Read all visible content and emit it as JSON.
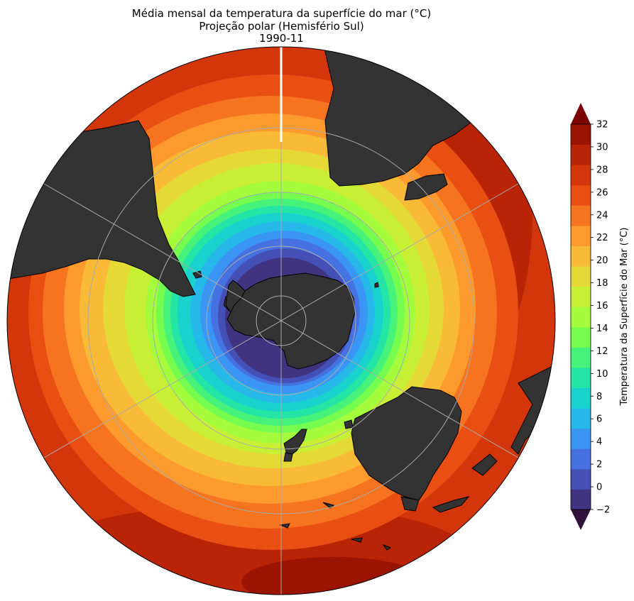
{
  "title": {
    "line1": "Média mensal da temperatura da superfície do mar (°C)",
    "line2": "Projeção polar (Hemisfério Sul)",
    "line3": "1990-11"
  },
  "map": {
    "projection": "South Polar Stereographic",
    "hemisphere": "Sul",
    "variable": "Temperatura da superfície do mar",
    "date": "1990-11",
    "land_color": "#333333",
    "gridline_color": "#aaaaaa"
  },
  "colorbar": {
    "label": "Temperatura da Superfície do Mar (°C)",
    "ticks": [
      "32",
      "30",
      "28",
      "26",
      "24",
      "22",
      "20",
      "18",
      "16",
      "14",
      "12",
      "10",
      "8",
      "6",
      "4",
      "2",
      "0",
      "−2"
    ],
    "levels": [
      -2,
      -1,
      0,
      1,
      2,
      3,
      4,
      5,
      6,
      7,
      8,
      9,
      10,
      11,
      12,
      13,
      14,
      15,
      16,
      17,
      18,
      19,
      20,
      21,
      22,
      23,
      24,
      25,
      26,
      27,
      28,
      29,
      30,
      31,
      32
    ],
    "colors": [
      "#40337f",
      "#4450b5",
      "#4572e0",
      "#3a95f5",
      "#27b8ea",
      "#1ad2cd",
      "#24e4a6",
      "#46f27a",
      "#76fb4f",
      "#a4fc3c",
      "#c9ef34",
      "#e5d936",
      "#f9bb37",
      "#fd9a2d",
      "#f6741f",
      "#e94f13",
      "#d3360a",
      "#b92406",
      "#9b1402"
    ],
    "under_color": "#30123b",
    "over_color": "#7a0403",
    "extend": "both"
  }
}
